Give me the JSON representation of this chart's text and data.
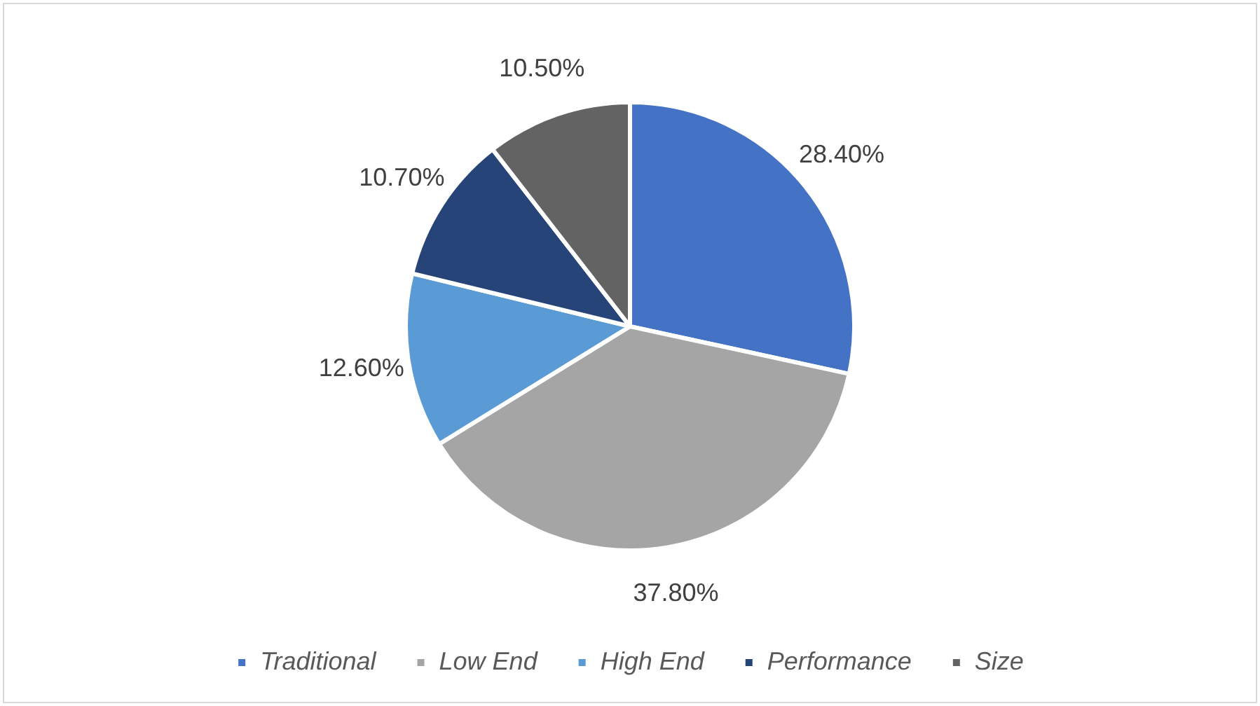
{
  "chart_data": {
    "type": "pie",
    "categories": [
      "Traditional",
      "Low End",
      "High End",
      "Performance",
      "Size"
    ],
    "values": [
      28.4,
      37.8,
      12.6,
      10.7,
      10.5
    ],
    "colors": [
      "#4472c4",
      "#a5a5a5",
      "#5b9bd5",
      "#264478",
      "#636363"
    ],
    "value_labels": [
      "28.40%",
      "37.80%",
      "12.60%",
      "10.70%",
      "10.50%"
    ],
    "legend": "bottom"
  }
}
